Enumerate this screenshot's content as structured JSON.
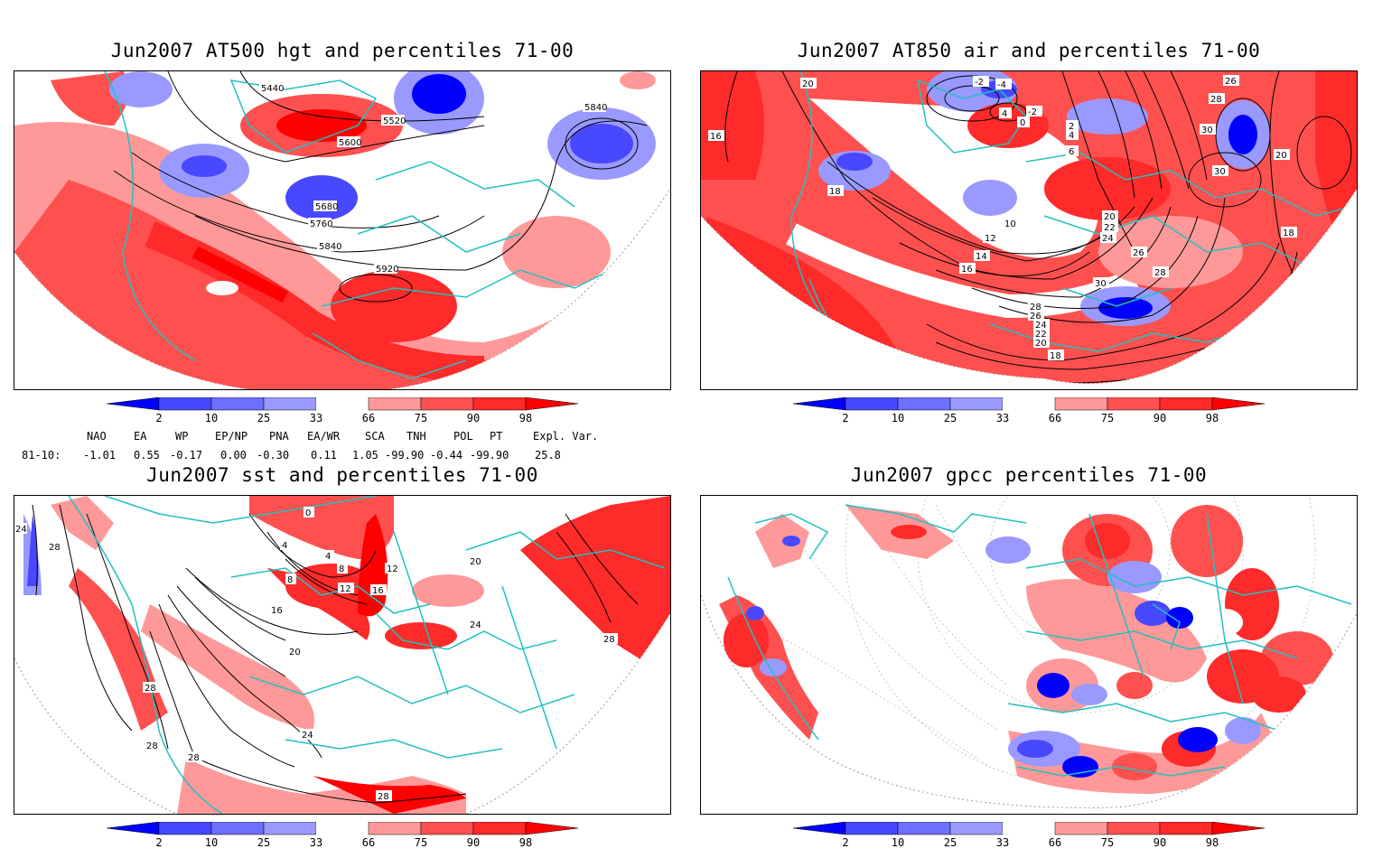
{
  "panels": [
    {
      "id": "p1",
      "title": "Jun2007 AT500 hgt and percentiles 71-00",
      "contour_labels": [
        "5440",
        "5520",
        "5600",
        "5680",
        "5760",
        "5840",
        "5920",
        "5840"
      ]
    },
    {
      "id": "p2",
      "title": "Jun2007 AT850 air and percentiles 71-00",
      "contour_labels": [
        "20",
        "16",
        "18",
        "-2",
        "-4",
        "4",
        "0",
        "-2",
        "2",
        "4",
        "6",
        "10",
        "12",
        "14",
        "16",
        "20",
        "22",
        "24",
        "26",
        "28",
        "30",
        "28",
        "26",
        "24",
        "22",
        "20",
        "18",
        "30",
        "20",
        "18",
        "26",
        "28",
        "30"
      ]
    },
    {
      "id": "p3",
      "title": "Jun2007 sst and percentiles 71-00",
      "contour_labels": [
        "24",
        "28",
        "28",
        "16",
        "20",
        "24",
        "28",
        "28",
        "28",
        "4",
        "8",
        "12",
        "0",
        "4",
        "8",
        "12",
        "16",
        "20",
        "24",
        "28"
      ]
    },
    {
      "id": "p4",
      "title": "Jun2007 gpcc percentiles 71-00",
      "contour_labels": []
    }
  ],
  "colorbar": {
    "ticks": [
      "2",
      "10",
      "25",
      "33",
      "66",
      "75",
      "90",
      "98"
    ],
    "colors": {
      "blue_dark": "#0000ff",
      "blue_mid": "#4848ff",
      "blue_light": "#9999ff",
      "white": "#ffffff",
      "red_light": "#ff9999",
      "red_mid": "#ff5050",
      "red_dark": "#ff2a2a",
      "red_max": "#ff0000"
    }
  },
  "indices": {
    "headers": [
      "NAO",
      "EA",
      "WP",
      "EP/NP",
      "PNA",
      "EA/WR",
      "SCA",
      "TNH",
      "POL",
      "PT",
      "Expl. Var."
    ],
    "row_label": "81-10:",
    "values": [
      "-1.01",
      "0.55",
      "-0.17",
      "0.00",
      "-0.30",
      "0.11",
      "1.05",
      "-99.90",
      "-0.44",
      "-99.90",
      "25.8"
    ]
  },
  "map_style": {
    "coast_color": "#22c0c0",
    "contour_color": "#000000",
    "grid_color": "#999999"
  }
}
